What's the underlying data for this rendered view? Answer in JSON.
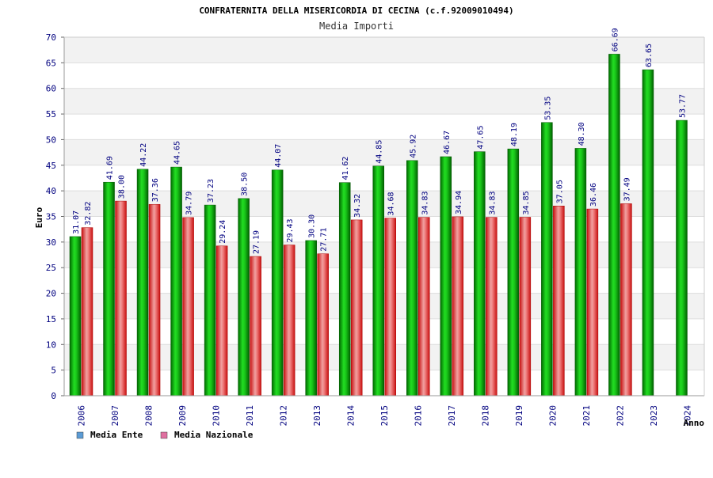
{
  "chart_data": {
    "type": "bar",
    "title": "CONFRATERNITA DELLA MISERICORDIA DI CECINA (c.f.92009010494)",
    "subtitle": "Media Importi",
    "xlabel": "Anno",
    "ylabel": "Euro",
    "ylim": [
      0,
      70
    ],
    "ytick_step": 5,
    "grid": true,
    "legend_position": "bottom-left",
    "categories": [
      "2006",
      "2007",
      "2008",
      "2009",
      "2010",
      "2011",
      "2012",
      "2013",
      "2014",
      "2015",
      "2016",
      "2017",
      "2018",
      "2019",
      "2020",
      "2021",
      "2022",
      "2023",
      "2024"
    ],
    "series": [
      {
        "name": "Media Ente",
        "legend_color": "#5b9bd5",
        "bar_color": "#00b000",
        "values": [
          31.07,
          41.69,
          44.22,
          44.65,
          37.23,
          38.5,
          44.07,
          30.3,
          41.62,
          44.85,
          45.92,
          46.67,
          47.65,
          48.19,
          53.35,
          48.3,
          66.69,
          63.65,
          53.77
        ],
        "labels": [
          "31.07",
          "41.69",
          "44.22",
          "44.65",
          "37.23",
          "38.50",
          "44.07",
          "30.30",
          "41.62",
          "44.85",
          "45.92",
          "46.67",
          "47.65",
          "48.19",
          "53.35",
          "48.30",
          "66.69",
          "63.65",
          "53.77"
        ]
      },
      {
        "name": "Media Nazionale",
        "legend_color": "#e070a0",
        "bar_color": "#e02020",
        "values": [
          32.82,
          38.0,
          37.36,
          34.79,
          29.24,
          27.19,
          29.43,
          27.71,
          34.32,
          34.68,
          34.83,
          34.94,
          34.83,
          34.85,
          37.05,
          36.46,
          37.49,
          null,
          null
        ],
        "labels": [
          "32.82",
          "38.00",
          "37.36",
          "34.79",
          "29.24",
          "27.19",
          "29.43",
          "27.71",
          "34.32",
          "34.68",
          "34.83",
          "34.94",
          "34.83",
          "34.85",
          "37.05",
          "36.46",
          "37.49",
          null,
          null
        ]
      }
    ]
  }
}
